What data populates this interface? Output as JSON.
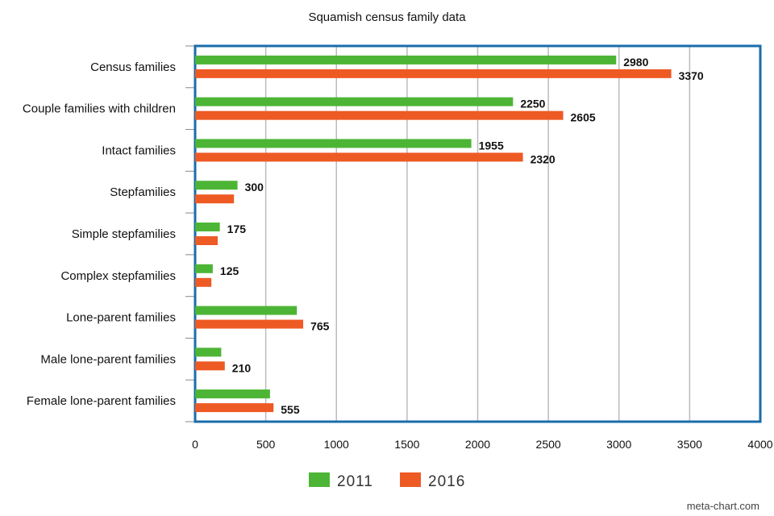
{
  "chart_data": {
    "type": "bar",
    "orientation": "horizontal",
    "title": "Squamish census family data",
    "categories": [
      "Census families",
      "Couple families with children",
      "Intact families",
      "Stepfamilies",
      "Simple stepfamilies",
      "Complex stepfamilies",
      "Lone-parent families",
      "Male lone-parent families",
      "Female lone-parent families"
    ],
    "series": [
      {
        "name": "2011",
        "color": "#4db535",
        "values": [
          2980,
          2250,
          1955,
          300,
          175,
          125,
          720,
          185,
          530
        ],
        "labels": [
          "2980",
          "2250",
          "1955",
          "300",
          "175",
          "125",
          null,
          null,
          null
        ]
      },
      {
        "name": "2016",
        "color": "#ee5a24",
        "values": [
          3370,
          2605,
          2320,
          275,
          160,
          115,
          765,
          210,
          555
        ],
        "labels": [
          "3370",
          "2605",
          "2320",
          null,
          null,
          null,
          "765",
          "210",
          "555"
        ]
      }
    ],
    "xlim": [
      0,
      4000
    ],
    "xticks": [
      "0",
      "500",
      "1000",
      "1500",
      "2000",
      "2500",
      "3000",
      "3500",
      "4000"
    ],
    "grid": true,
    "legend_position": "bottom",
    "frame_color": "#1a6cab",
    "grid_color": "#bbbbbb"
  },
  "watermark": "meta-chart.com"
}
